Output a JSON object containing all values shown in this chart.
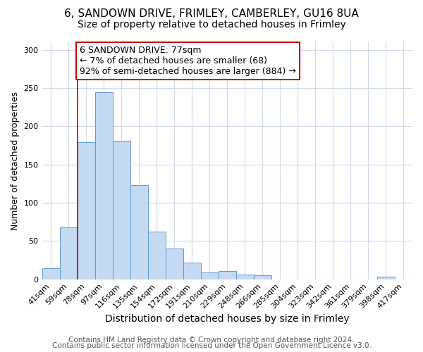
{
  "title1": "6, SANDOWN DRIVE, FRIMLEY, CAMBERLEY, GU16 8UA",
  "title2": "Size of property relative to detached houses in Frimley",
  "xlabel": "Distribution of detached houses by size in Frimley",
  "ylabel": "Number of detached properties",
  "categories": [
    "41sqm",
    "59sqm",
    "78sqm",
    "97sqm",
    "116sqm",
    "135sqm",
    "154sqm",
    "172sqm",
    "191sqm",
    "210sqm",
    "229sqm",
    "248sqm",
    "266sqm",
    "285sqm",
    "304sqm",
    "323sqm",
    "342sqm",
    "361sqm",
    "379sqm",
    "398sqm",
    "417sqm"
  ],
  "values": [
    14,
    68,
    179,
    245,
    181,
    123,
    62,
    40,
    22,
    9,
    11,
    6,
    5,
    0,
    0,
    0,
    0,
    0,
    0,
    3,
    0
  ],
  "bar_color": "#c5d9f0",
  "bar_edge_color": "#5b9bd5",
  "vline_color": "#cc0000",
  "annotation_text": "6 SANDOWN DRIVE: 77sqm\n← 7% of detached houses are smaller (68)\n92% of semi-detached houses are larger (884) →",
  "annotation_box_color": "#ffffff",
  "annotation_box_edge_color": "#cc0000",
  "ylim": [
    0,
    310
  ],
  "yticks": [
    0,
    50,
    100,
    150,
    200,
    250,
    300
  ],
  "fig_bg_color": "#ffffff",
  "plot_bg_color": "#ffffff",
  "grid_color": "#d0d8e8",
  "footer1": "Contains HM Land Registry data © Crown copyright and database right 2024.",
  "footer2": "Contains public sector information licensed under the Open Government Licence v3.0.",
  "title1_fontsize": 11,
  "title2_fontsize": 10,
  "xlabel_fontsize": 10,
  "ylabel_fontsize": 9,
  "tick_fontsize": 8,
  "annotation_fontsize": 9,
  "footer_fontsize": 7.5
}
